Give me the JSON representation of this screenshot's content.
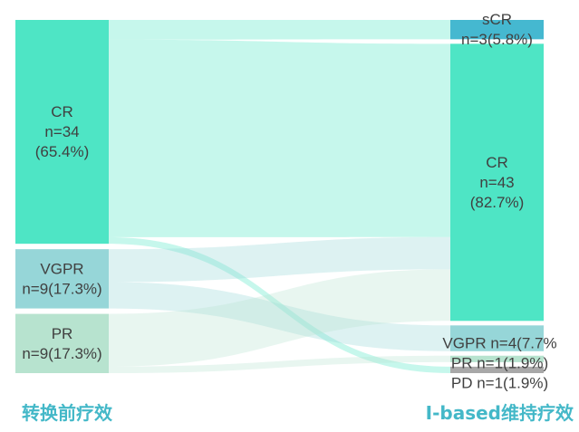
{
  "chart_data": {
    "type": "sankey",
    "left_title": "转换前疗效",
    "right_title": "I-based维持疗效",
    "left_nodes": [
      {
        "id": "L_CR",
        "lines": [
          "CR",
          "n=34",
          "(65.4%)"
        ],
        "value": 34,
        "color": "#4ee5c5"
      },
      {
        "id": "L_VGPR",
        "lines": [
          "VGPR",
          "n=9(17.3%)"
        ],
        "value": 9,
        "color": "#96d6d8"
      },
      {
        "id": "L_PR",
        "lines": [
          "PR",
          "n=9(17.3%)"
        ],
        "value": 9,
        "color": "#b7e3cf"
      }
    ],
    "right_nodes": [
      {
        "id": "R_sCR",
        "lines": [
          "sCR",
          "n=3(5.8%)"
        ],
        "value": 3,
        "color": "#45b8d0"
      },
      {
        "id": "R_CR",
        "lines": [
          "CR",
          "n=43",
          "(82.7%)"
        ],
        "value": 43,
        "color": "#4ee5c5"
      },
      {
        "id": "R_VGPR",
        "lines": [
          "VGPR n=4(7.7%"
        ],
        "value": 4,
        "color": "#96d6d8"
      },
      {
        "id": "R_PR",
        "lines": [
          "PR n=1(1.9%)"
        ],
        "value": 1,
        "color": "#b7e3cf"
      },
      {
        "id": "R_PD",
        "lines": [
          "PD n=1(1.9%)"
        ],
        "value": 1,
        "color": "#a8a8a8"
      }
    ],
    "links": [
      {
        "source": "L_CR",
        "target": "R_sCR",
        "value": 3
      },
      {
        "source": "L_CR",
        "target": "R_CR",
        "value": 30
      },
      {
        "source": "L_CR",
        "target": "R_PD",
        "value": 1
      },
      {
        "source": "L_VGPR",
        "target": "R_CR",
        "value": 5
      },
      {
        "source": "L_VGPR",
        "target": "R_VGPR",
        "value": 4
      },
      {
        "source": "L_PR",
        "target": "R_CR",
        "value": 8
      },
      {
        "source": "L_PR",
        "target": "R_PR",
        "value": 1
      }
    ]
  }
}
